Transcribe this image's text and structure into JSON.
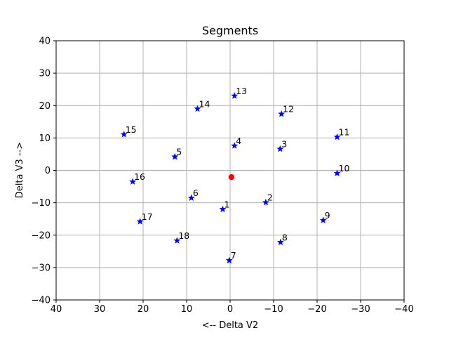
{
  "chart_data": {
    "type": "scatter",
    "title": "Segments",
    "xlabel": "<-- Delta V2",
    "ylabel": "Delta V3 -->",
    "xlim": [
      40,
      -40
    ],
    "ylim": [
      -40,
      40
    ],
    "x_reversed": true,
    "grid": true,
    "x_ticks": [
      40,
      30,
      20,
      10,
      0,
      -10,
      -20,
      -30,
      -40
    ],
    "y_ticks": [
      40,
      30,
      20,
      10,
      0,
      -10,
      -20,
      -30,
      -40
    ],
    "x_tick_labels": [
      "40",
      "30",
      "20",
      "10",
      "0",
      "−10",
      "−20",
      "−30",
      "−40"
    ],
    "y_tick_labels": [
      "40",
      "30",
      "20",
      "10",
      "0",
      "−10",
      "−20",
      "−30",
      "−40"
    ],
    "series": [
      {
        "marker": "star",
        "color": "#0000ff",
        "points": [
          {
            "label": "1",
            "x": 1.7,
            "y": -12.0
          },
          {
            "label": "2",
            "x": -8.2,
            "y": -9.9
          },
          {
            "label": "3",
            "x": -11.5,
            "y": 6.6
          },
          {
            "label": "4",
            "x": -1.0,
            "y": 7.6
          },
          {
            "label": "5",
            "x": 12.7,
            "y": 4.2
          },
          {
            "label": "6",
            "x": 8.9,
            "y": -8.5
          },
          {
            "label": "7",
            "x": 0.2,
            "y": -27.8
          },
          {
            "label": "8",
            "x": -11.6,
            "y": -22.2
          },
          {
            "label": "9",
            "x": -21.4,
            "y": -15.4
          },
          {
            "label": "10",
            "x": -24.6,
            "y": -0.9
          },
          {
            "label": "11",
            "x": -24.6,
            "y": 10.3
          },
          {
            "label": "12",
            "x": -11.8,
            "y": 17.4
          },
          {
            "label": "13",
            "x": -1.0,
            "y": 23.0
          },
          {
            "label": "14",
            "x": 7.5,
            "y": 19.0
          },
          {
            "label": "15",
            "x": 24.4,
            "y": 11.1
          },
          {
            "label": "16",
            "x": 22.4,
            "y": -3.5
          },
          {
            "label": "17",
            "x": 20.7,
            "y": -15.8
          },
          {
            "label": "18",
            "x": 12.2,
            "y": -21.7
          }
        ]
      },
      {
        "marker": "circle",
        "color": "#ff0000",
        "points": [
          {
            "label": "",
            "x": -0.3,
            "y": -2.1
          }
        ]
      }
    ]
  }
}
